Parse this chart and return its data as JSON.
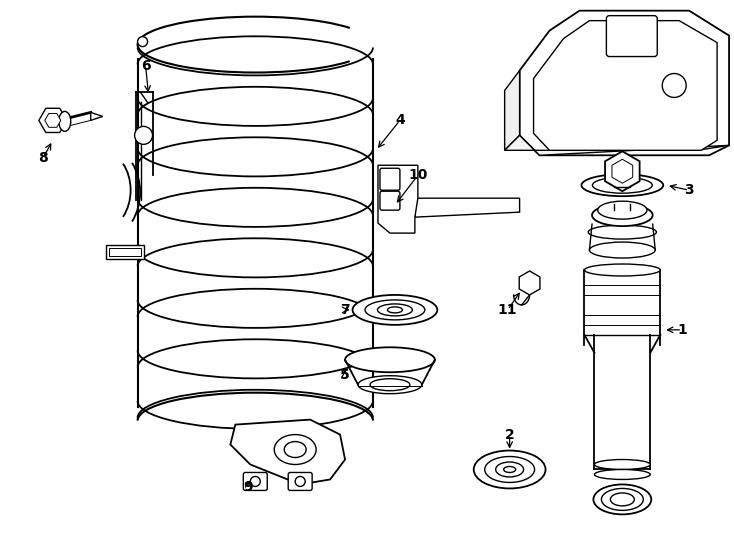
{
  "bg_color": "#ffffff",
  "line_color": "#000000",
  "fig_width": 7.34,
  "fig_height": 5.4,
  "dpi": 100
}
